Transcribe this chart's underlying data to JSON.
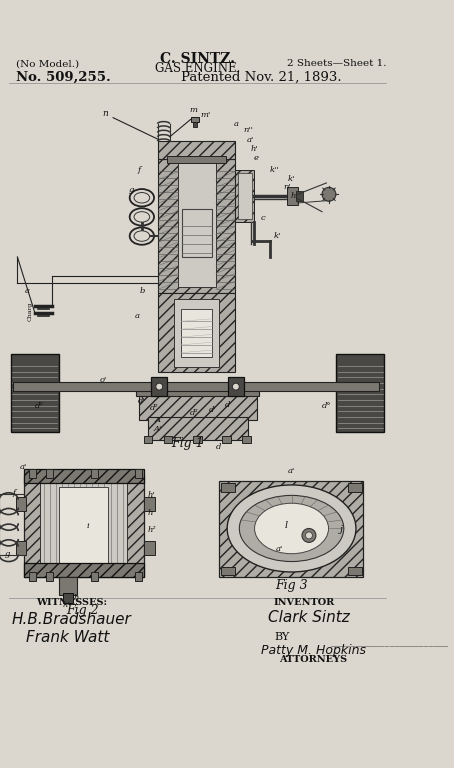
{
  "fig_width": 4.54,
  "fig_height": 7.68,
  "dpi": 100,
  "bg_color": "#dbd7ce",
  "title1": "C. SINTZ.",
  "title2": "GAS ENGINE.",
  "top_left": "(No Model.)",
  "top_right": "2 Sheets—Sheet 1.",
  "patent_no": "No. 509,255.",
  "patented": "Patented Nov. 21, 1893.",
  "fig1_label": "Fig 1",
  "fig2_label": "Fig 2",
  "fig3_label": "Fig 3",
  "witnesses_label": "WITNESSES:",
  "inventor_label": "INVENTOR",
  "by_label": "BY",
  "attorneys_label": "ATTORNEYS",
  "witness1": "H.B.Bradshauer",
  "witness2": "Frank Watt",
  "inventor_name": "Clark Sintz",
  "text_color": "#111111",
  "line_color": "#1a1a1a",
  "hatch_dark": "#3a3a3a",
  "fill_dark": "#4a4844",
  "fill_med": "#7a7870",
  "fill_light": "#aeaca4",
  "fill_very_light": "#cccac2",
  "fill_white": "#e8e5dc"
}
